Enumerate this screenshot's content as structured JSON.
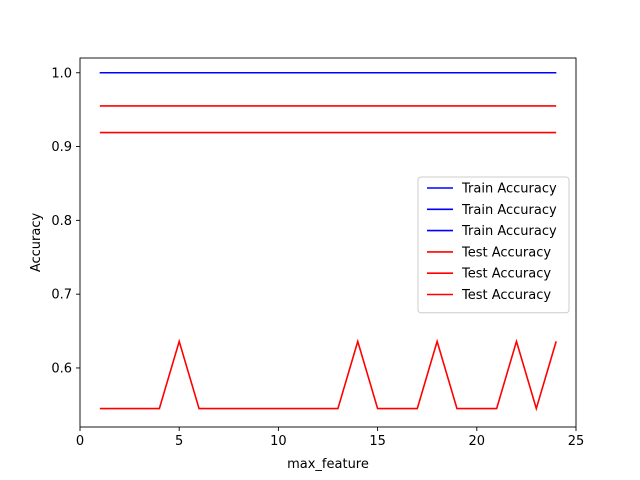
{
  "chart_data": {
    "type": "line",
    "title": "",
    "xlabel": "max_feature",
    "ylabel": "Accuracy",
    "xlim": [
      0,
      25
    ],
    "ylim": [
      0.52,
      1.02
    ],
    "xticks": [
      0,
      5,
      10,
      15,
      20,
      25
    ],
    "yticks": [
      0.6,
      0.7,
      0.8,
      0.9,
      1.0
    ],
    "xtick_labels": [
      "0",
      "5",
      "10",
      "15",
      "20",
      "25"
    ],
    "ytick_labels": [
      "0.6",
      "0.7",
      "0.8",
      "0.9",
      "1.0"
    ],
    "grid": false,
    "legend_position": "center-right",
    "x": [
      1,
      2,
      3,
      4,
      5,
      6,
      7,
      8,
      9,
      10,
      11,
      12,
      13,
      14,
      15,
      16,
      17,
      18,
      19,
      20,
      21,
      22,
      23,
      24
    ],
    "series": [
      {
        "name": "Train Accuracy",
        "color": "#0000ff",
        "values": [
          1,
          1,
          1,
          1,
          1,
          1,
          1,
          1,
          1,
          1,
          1,
          1,
          1,
          1,
          1,
          1,
          1,
          1,
          1,
          1,
          1,
          1,
          1,
          1
        ]
      },
      {
        "name": "Train Accuracy",
        "color": "#0000ff",
        "values": [
          1,
          1,
          1,
          1,
          1,
          1,
          1,
          1,
          1,
          1,
          1,
          1,
          1,
          1,
          1,
          1,
          1,
          1,
          1,
          1,
          1,
          1,
          1,
          1
        ]
      },
      {
        "name": "Train Accuracy",
        "color": "#0000ff",
        "values": [
          1,
          1,
          1,
          1,
          1,
          1,
          1,
          1,
          1,
          1,
          1,
          1,
          1,
          1,
          1,
          1,
          1,
          1,
          1,
          1,
          1,
          1,
          1,
          1
        ]
      },
      {
        "name": "Test Accuracy",
        "color": "#ff0000",
        "values": [
          0.955,
          0.955,
          0.955,
          0.955,
          0.955,
          0.955,
          0.955,
          0.955,
          0.955,
          0.955,
          0.955,
          0.955,
          0.955,
          0.955,
          0.955,
          0.955,
          0.955,
          0.955,
          0.955,
          0.955,
          0.955,
          0.955,
          0.955,
          0.955
        ]
      },
      {
        "name": "Test Accuracy",
        "color": "#ff0000",
        "values": [
          0.545,
          0.545,
          0.545,
          0.545,
          0.636,
          0.545,
          0.545,
          0.545,
          0.545,
          0.545,
          0.545,
          0.545,
          0.545,
          0.636,
          0.545,
          0.545,
          0.545,
          0.636,
          0.545,
          0.545,
          0.545,
          0.636,
          0.545,
          0.636
        ]
      },
      {
        "name": "Test Accuracy",
        "color": "#ff0000",
        "values": [
          0.919,
          0.919,
          0.919,
          0.919,
          0.919,
          0.919,
          0.919,
          0.919,
          0.919,
          0.919,
          0.919,
          0.919,
          0.919,
          0.919,
          0.919,
          0.919,
          0.919,
          0.919,
          0.919,
          0.919,
          0.919,
          0.919,
          0.919,
          0.919
        ]
      }
    ]
  }
}
